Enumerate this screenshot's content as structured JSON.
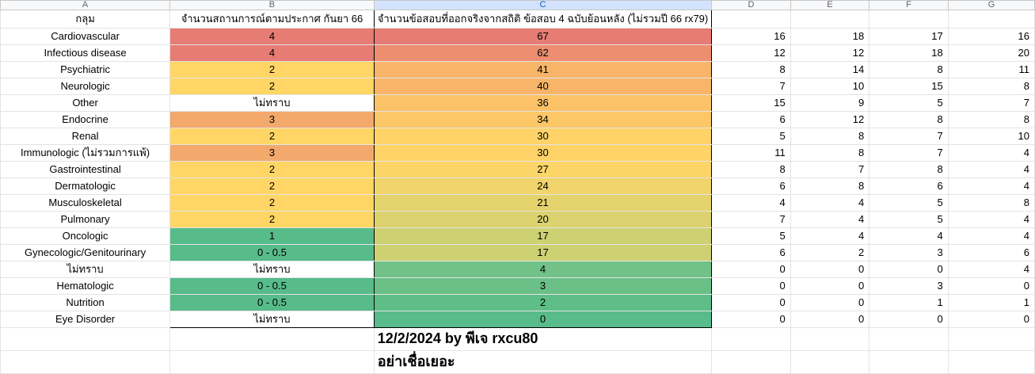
{
  "column_headers": [
    "A",
    "B",
    "C",
    "D",
    "E",
    "F",
    "G"
  ],
  "header_row": {
    "a": "กลุม",
    "b": "จํานวนสถานการณ์ตามประกาศ กันยา 66",
    "c": "จำนวนข้อสอบที่ออกจริงจากสถิติ ข้อสอบ 4 ฉบับย้อนหลัง (ไม่รวมปี 66 rx79)"
  },
  "rows": [
    {
      "group": "Cardiovascular",
      "b": "4",
      "c": "67",
      "d": "16",
      "e": "18",
      "f": "17",
      "g": "16",
      "b_color": "#e67c73",
      "c_color": "#e67c73"
    },
    {
      "group": "Infectious disease",
      "b": "4",
      "c": "62",
      "d": "12",
      "e": "12",
      "f": "18",
      "g": "20",
      "b_color": "#e67c73",
      "c_color": "#ec8e6f"
    },
    {
      "group": "Psychiatric",
      "b": "2",
      "c": "41",
      "d": "8",
      "e": "14",
      "f": "8",
      "g": "11",
      "b_color": "#ffd666",
      "c_color": "#f8b569"
    },
    {
      "group": "Neurologic",
      "b": "2",
      "c": "40",
      "d": "7",
      "e": "10",
      "f": "15",
      "g": "8",
      "b_color": "#ffd666",
      "c_color": "#f8b569"
    },
    {
      "group": "Other",
      "b": "ไม่ทราบ",
      "c": "36",
      "d": "15",
      "e": "9",
      "f": "5",
      "g": "7",
      "b_color": "#ffffff",
      "c_color": "#fbc267"
    },
    {
      "group": "Endocrine",
      "b": "3",
      "c": "34",
      "d": "6",
      "e": "12",
      "f": "8",
      "g": "8",
      "b_color": "#f3a86c",
      "c_color": "#fcc767"
    },
    {
      "group": "Renal",
      "b": "2",
      "c": "30",
      "d": "5",
      "e": "8",
      "f": "7",
      "g": "10",
      "b_color": "#ffd666",
      "c_color": "#ffd367"
    },
    {
      "group": "Immunologic (ไม่รวมการแพ้)",
      "b": "3",
      "c": "30",
      "d": "11",
      "e": "8",
      "f": "7",
      "g": "4",
      "b_color": "#f3a86c",
      "c_color": "#ffd367"
    },
    {
      "group": "Gastrointestinal",
      "b": "2",
      "c": "27",
      "d": "8",
      "e": "7",
      "f": "8",
      "g": "4",
      "b_color": "#ffd666",
      "c_color": "#fbd568"
    },
    {
      "group": "Dermatologic",
      "b": "2",
      "c": "24",
      "d": "6",
      "e": "8",
      "f": "6",
      "g": "4",
      "b_color": "#ffd666",
      "c_color": "#f1d46b"
    },
    {
      "group": "Musculoskeletal",
      "b": "2",
      "c": "21",
      "d": "4",
      "e": "4",
      "f": "5",
      "g": "8",
      "b_color": "#ffd666",
      "c_color": "#e4d36d"
    },
    {
      "group": "Pulmonary",
      "b": "2",
      "c": "20",
      "d": "7",
      "e": "4",
      "f": "5",
      "g": "4",
      "b_color": "#ffd666",
      "c_color": "#dcd26f"
    },
    {
      "group": "Oncologic",
      "b": "1",
      "c": "17",
      "d": "5",
      "e": "4",
      "f": "4",
      "g": "4",
      "b_color": "#57bb8a",
      "c_color": "#ced172"
    },
    {
      "group": "Gynecologic/Genitourinary",
      "b": "0 - 0.5",
      "c": "17",
      "d": "6",
      "e": "2",
      "f": "3",
      "g": "6",
      "b_color": "#57bb8a",
      "c_color": "#ced172"
    },
    {
      "group": "ไม่ทราบ",
      "b": "ไม่ทราบ",
      "c": "4",
      "d": "0",
      "e": "0",
      "f": "0",
      "g": "4",
      "b_color": "#ffffff",
      "c_color": "#72c187"
    },
    {
      "group": "Hematologic",
      "b": "0 - 0.5",
      "c": "3",
      "d": "0",
      "e": "0",
      "f": "3",
      "g": "0",
      "b_color": "#57bb8a",
      "c_color": "#6ac086"
    },
    {
      "group": "Nutrition",
      "b": "0 - 0.5",
      "c": "2",
      "d": "0",
      "e": "0",
      "f": "1",
      "g": "1",
      "b_color": "#57bb8a",
      "c_color": "#5fbd88"
    },
    {
      "group": "Eye Disorder",
      "b": "ไม่ทราบ",
      "c": "0",
      "d": "0",
      "e": "0",
      "f": "0",
      "g": "0",
      "b_color": "#ffffff",
      "c_color": "#57bb8a"
    }
  ],
  "notes": {
    "line1": "12/2/2024 by พีเจ rxcu80",
    "line2": "อย่าเชื่อเยอะ"
  }
}
